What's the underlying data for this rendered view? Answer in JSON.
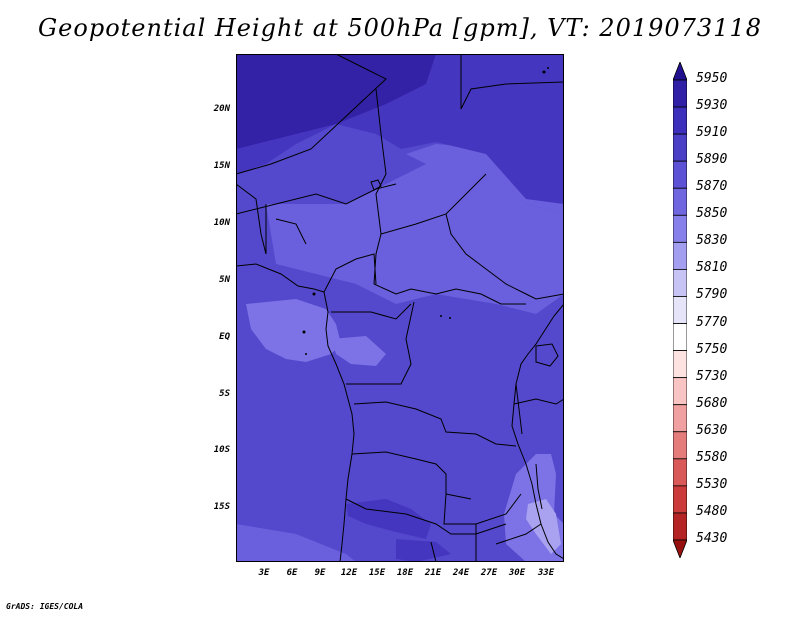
{
  "title": "Geopotential Height at 500hPa [gpm], VT: 2019073118",
  "lat_ticks": [
    "20N",
    "15N",
    "10N",
    "5N",
    "EQ",
    "5S",
    "10S",
    "15S"
  ],
  "lon_ticks": [
    "3E",
    "6E",
    "9E",
    "12E",
    "15E",
    "18E",
    "21E",
    "24E",
    "27E",
    "30E",
    "33E"
  ],
  "colorbar": {
    "labels": [
      "5950",
      "5930",
      "5910",
      "5890",
      "5870",
      "5850",
      "5830",
      "5810",
      "5790",
      "5770",
      "5750",
      "5730",
      "5680",
      "5630",
      "5580",
      "5530",
      "5480",
      "5430"
    ],
    "colors": [
      "#22118f",
      "#3020a6",
      "#3b2fbb",
      "#4a40c8",
      "#5d52d6",
      "#6f66e0",
      "#8780ea",
      "#a49ef0",
      "#c7c3f5",
      "#e6e4f9",
      "#ffffff",
      "#fde2e2",
      "#f8c4c4",
      "#f0a0a0",
      "#e47c7c",
      "#d95959",
      "#cc3b3b",
      "#b52424",
      "#981111"
    ]
  },
  "map": {
    "fill_colors": {
      "darkest": "#3322a6",
      "dark": "#4536c0",
      "base": "#5448cc",
      "light": "#6a5fdc",
      "lighter": "#7d73e6",
      "lightest": "#a9a2f0"
    }
  },
  "credit": "GrADS: IGES/COLA"
}
